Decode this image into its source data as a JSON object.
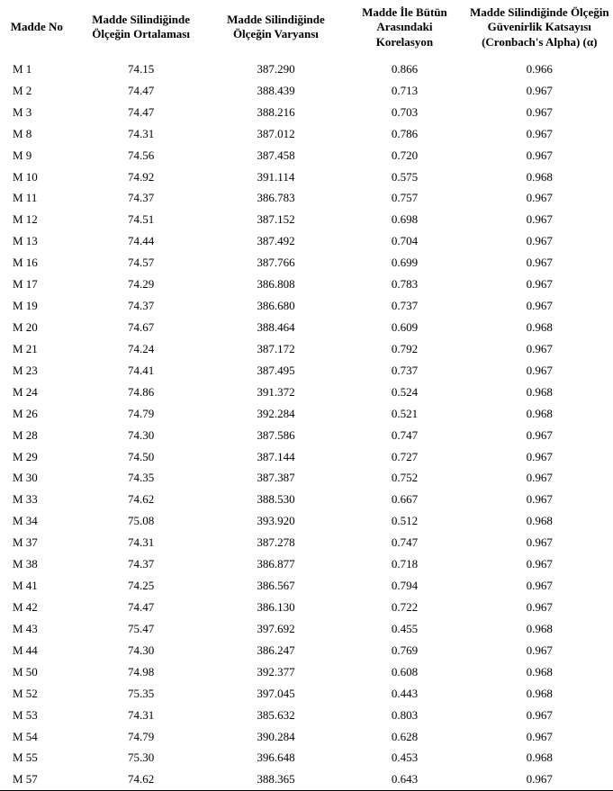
{
  "table": {
    "columns": [
      "Madde No",
      "Madde Silindiğinde Ölçeğin Ortalaması",
      "Madde Silindiğinde Ölçeğin Varyansı",
      "Madde İle Bütün Arasındaki Korelasyon",
      "Madde Silindiğinde Ölçeğin Güvenirlik Katsayısı (Cronbach's Alpha) (α)"
    ],
    "rows": [
      [
        "M 1",
        "74.15",
        "387.290",
        "0.866",
        "0.966"
      ],
      [
        "M 2",
        "74.47",
        "388.439",
        "0.713",
        "0.967"
      ],
      [
        "M 3",
        "74.47",
        "388.216",
        "0.703",
        "0.967"
      ],
      [
        "M 8",
        "74.31",
        "387.012",
        "0.786",
        "0.967"
      ],
      [
        "M 9",
        "74.56",
        "387.458",
        "0.720",
        "0.967"
      ],
      [
        "M 10",
        "74.92",
        "391.114",
        "0.575",
        "0.968"
      ],
      [
        "M 11",
        "74.37",
        "386.783",
        "0.757",
        "0.967"
      ],
      [
        "M 12",
        "74.51",
        "387.152",
        "0.698",
        "0.967"
      ],
      [
        "M 13",
        "74.44",
        "387.492",
        "0.704",
        "0.967"
      ],
      [
        "M 16",
        "74.57",
        "387.766",
        "0.699",
        "0.967"
      ],
      [
        "M 17",
        "74.29",
        "386.808",
        "0.783",
        "0.967"
      ],
      [
        "M 19",
        "74.37",
        "386.680",
        "0.737",
        "0.967"
      ],
      [
        "M 20",
        "74.67",
        "388.464",
        "0.609",
        "0.968"
      ],
      [
        "M 21",
        "74.24",
        "387.172",
        "0.792",
        "0.967"
      ],
      [
        "M 23",
        "74.41",
        "387.495",
        "0.737",
        "0.967"
      ],
      [
        "M 24",
        "74.86",
        "391.372",
        "0.524",
        "0.968"
      ],
      [
        "M 26",
        "74.79",
        "392.284",
        "0.521",
        "0.968"
      ],
      [
        "M 28",
        "74.30",
        "387.586",
        "0.747",
        "0.967"
      ],
      [
        "M 29",
        "74.50",
        "387.144",
        "0.727",
        "0.967"
      ],
      [
        "M 30",
        "74.35",
        "387.387",
        "0.752",
        "0.967"
      ],
      [
        "M 33",
        "74.62",
        "388.530",
        "0.667",
        "0.967"
      ],
      [
        "M 34",
        "75.08",
        "393.920",
        "0.512",
        "0.968"
      ],
      [
        "M 37",
        "74.31",
        "387.278",
        "0.747",
        "0.967"
      ],
      [
        "M 38",
        "74.37",
        "386.877",
        "0.718",
        "0.967"
      ],
      [
        "M 41",
        "74.25",
        "386.567",
        "0.794",
        "0.967"
      ],
      [
        "M 42",
        "74.47",
        "386.130",
        "0.722",
        "0.967"
      ],
      [
        "M 43",
        "75.47",
        "397.692",
        "0.455",
        "0.968"
      ],
      [
        "M 44",
        "74.30",
        "386.247",
        "0.769",
        "0.967"
      ],
      [
        "M 50",
        "74.98",
        "392.377",
        "0.608",
        "0.968"
      ],
      [
        "M 52",
        "75.35",
        "397.045",
        "0.443",
        "0.968"
      ],
      [
        "M 53",
        "74.31",
        "385.632",
        "0.803",
        "0.967"
      ],
      [
        "M 54",
        "74.79",
        "390.284",
        "0.628",
        "0.967"
      ],
      [
        "M 55",
        "75.30",
        "396.648",
        "0.453",
        "0.968"
      ],
      [
        "M 57",
        "74.62",
        "388.365",
        "0.643",
        "0.967"
      ]
    ],
    "styling": {
      "font_family": "Times New Roman",
      "header_fontsize_pt": 10,
      "body_fontsize_pt": 10,
      "text_color": "#000000",
      "background_color": "#ffffff",
      "row_border_bottom_last": "#000000",
      "column_widths_pct": [
        12,
        22,
        22,
        20,
        24
      ],
      "header_align": "center",
      "body_align": [
        "left",
        "center",
        "center",
        "center",
        "center"
      ]
    }
  }
}
